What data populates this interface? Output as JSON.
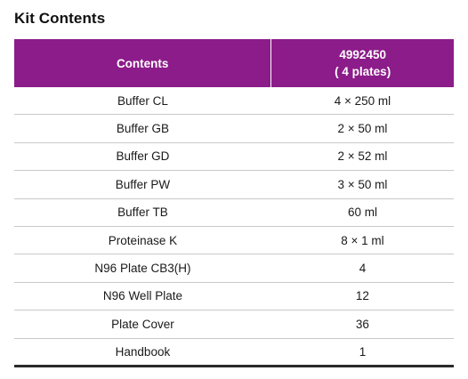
{
  "title": "Kit Contents",
  "table": {
    "header": {
      "contents_label": "Contents",
      "catalog_number": "4992450",
      "catalog_detail": "( 4 plates)"
    },
    "rows": [
      {
        "item": "Buffer CL",
        "quantity": "4 × 250 ml"
      },
      {
        "item": "Buffer GB",
        "quantity": "2 × 50 ml"
      },
      {
        "item": "Buffer GD",
        "quantity": "2 × 52 ml"
      },
      {
        "item": "Buffer PW",
        "quantity": "3 × 50 ml"
      },
      {
        "item": "Buffer TB",
        "quantity": "60 ml"
      },
      {
        "item": "Proteinase K",
        "quantity": "8 × 1  ml"
      },
      {
        "item": "N96 Plate CB3(H)",
        "quantity": "4"
      },
      {
        "item": "N96 Well Plate",
        "quantity": "12"
      },
      {
        "item": "Plate Cover",
        "quantity": "36"
      },
      {
        "item": "Handbook",
        "quantity": "1"
      }
    ]
  },
  "colors": {
    "header_background": "#8c1c8a",
    "header_text": "#ffffff",
    "row_divider": "#c9c9c9",
    "bottom_rule": "#2a2a2a"
  }
}
